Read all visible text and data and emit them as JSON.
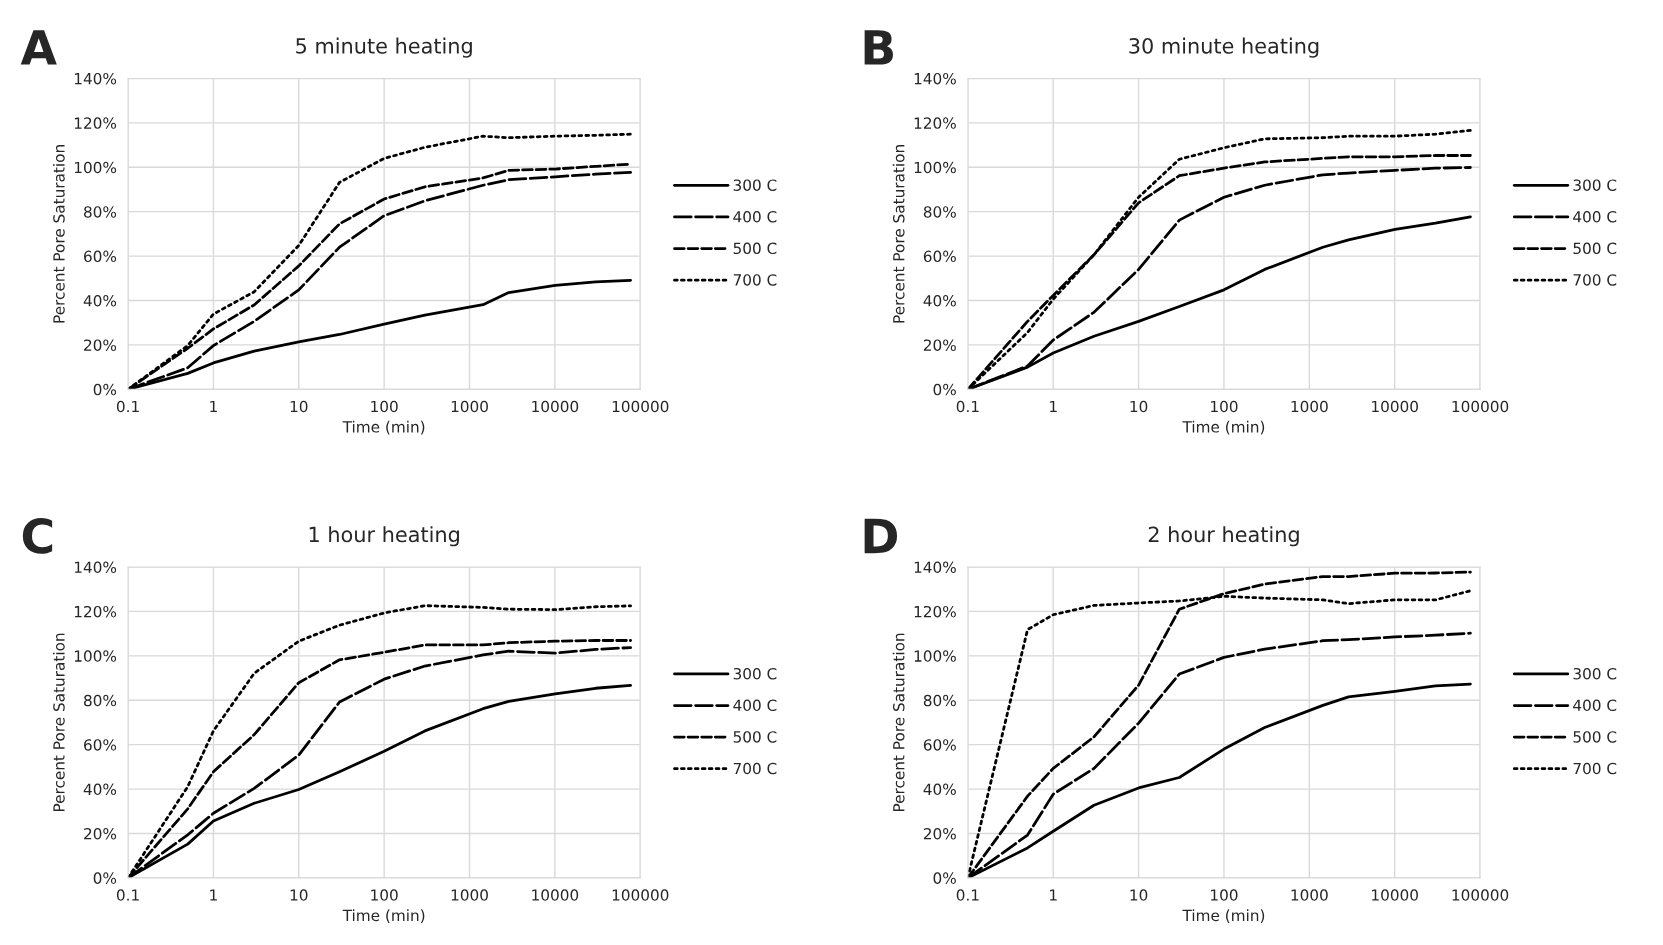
{
  "chart_data": [
    {
      "type": "line",
      "title": "5 minute heating",
      "xlabel": "Time (min)",
      "ylabel": "Percent Pore Saturation",
      "annotations": [
        "A"
      ],
      "log": "x",
      "grid": true,
      "legend": "right",
      "x": [
        0.1,
        0.5,
        1,
        3,
        10,
        30,
        100,
        300,
        1440,
        2880,
        10080,
        30000,
        77000
      ],
      "xlim": [
        0.1,
        100000
      ],
      "xticks": [
        0.1,
        1,
        10,
        100,
        1000,
        10000,
        100000
      ],
      "ylim": [
        0,
        140
      ],
      "yticks": [
        {
          "value": 0,
          "label": "0%"
        },
        {
          "value": 20,
          "label": "20%"
        },
        {
          "value": 40,
          "label": "40%"
        },
        {
          "value": 60,
          "label": "60%"
        },
        {
          "value": 80,
          "label": "80%"
        },
        {
          "value": 100,
          "label": "100%"
        },
        {
          "value": 120,
          "label": "120%"
        },
        {
          "value": 140,
          "label": "140%"
        }
      ],
      "series": [
        {
          "name": "300 C",
          "color": "#000000",
          "line_style": "solid",
          "values": [
            0,
            7.2,
            11.9,
            17.2,
            21.4,
            24.7,
            29.4,
            33.4,
            38.1,
            43.6,
            46.8,
            48.4,
            49.1
          ]
        },
        {
          "name": "400 C",
          "color": "#000000",
          "line_style": "dashed",
          "values": [
            0,
            9.7,
            19.7,
            30.6,
            44.8,
            64,
            78.2,
            84.9,
            91.9,
            94.4,
            95.7,
            96.9,
            97.7
          ]
        },
        {
          "name": "500 C",
          "color": "#000000",
          "line_style": "dashed",
          "values": [
            0,
            18.5,
            27.2,
            38,
            55.6,
            74.5,
            85.7,
            91.2,
            95.2,
            98.6,
            99.2,
            100.4,
            101.4
          ]
        },
        {
          "name": "700 C",
          "color": "#000000",
          "line_style": "dotted",
          "values": [
            0,
            19.7,
            33.9,
            43.9,
            64.8,
            93.2,
            104,
            109,
            114,
            113.3,
            114,
            114.4,
            114.9
          ]
        }
      ]
    },
    {
      "type": "line",
      "title": "30 minute heating",
      "xlabel": "Time (min)",
      "ylabel": "Percent Pore Saturation",
      "annotations": [
        "B"
      ],
      "log": "x",
      "grid": true,
      "legend": "right",
      "x": [
        0.1,
        0.5,
        1,
        3,
        10,
        30,
        100,
        300,
        1440,
        2880,
        10080,
        30000,
        77000
      ],
      "xlim": [
        0.1,
        100000
      ],
      "xticks": [
        0.1,
        1,
        10,
        100,
        1000,
        10000,
        100000
      ],
      "ylim": [
        0,
        140
      ],
      "yticks": [
        {
          "value": 0,
          "label": "0%"
        },
        {
          "value": 20,
          "label": "20%"
        },
        {
          "value": 40,
          "label": "40%"
        },
        {
          "value": 60,
          "label": "60%"
        },
        {
          "value": 80,
          "label": "80%"
        },
        {
          "value": 100,
          "label": "100%"
        },
        {
          "value": 120,
          "label": "120%"
        },
        {
          "value": 140,
          "label": "140%"
        }
      ],
      "series": [
        {
          "name": "300 C",
          "color": "#000000",
          "line_style": "solid",
          "values": [
            0,
            10,
            16.4,
            23.9,
            30.6,
            37.3,
            44.8,
            54,
            64,
            67.3,
            72,
            74.8,
            77.7
          ]
        },
        {
          "name": "400 C",
          "color": "#000000",
          "line_style": "dashed",
          "values": [
            0,
            10.5,
            22.2,
            34.7,
            54,
            76.2,
            86.5,
            91.9,
            96.6,
            97.4,
            98.6,
            99.6,
            99.9
          ]
        },
        {
          "name": "500 C",
          "color": "#000000",
          "line_style": "dashed",
          "values": [
            0,
            30.6,
            42.3,
            60.6,
            84,
            96.2,
            99.6,
            102.4,
            104,
            104.7,
            104.7,
            105.3,
            105.3
          ]
        },
        {
          "name": "700 C",
          "color": "#000000",
          "line_style": "dotted",
          "values": [
            0,
            25.6,
            40.6,
            60.6,
            86.5,
            103.6,
            108.8,
            112.8,
            113.3,
            114,
            114,
            114.9,
            116.6
          ]
        }
      ]
    },
    {
      "type": "line",
      "title": "1 hour heating",
      "xlabel": "Time (min)",
      "ylabel": "Percent Pore Saturation",
      "annotations": [
        "C"
      ],
      "log": "x",
      "grid": true,
      "legend": "right",
      "x": [
        0.1,
        0.5,
        1,
        3,
        10,
        30,
        100,
        300,
        1440,
        2880,
        10080,
        30000,
        77000
      ],
      "xlim": [
        0.1,
        100000
      ],
      "xticks": [
        0.1,
        1,
        10,
        100,
        1000,
        10000,
        100000
      ],
      "ylim": [
        0,
        140
      ],
      "yticks": [
        {
          "value": 0,
          "label": "0%"
        },
        {
          "value": 20,
          "label": "20%"
        },
        {
          "value": 40,
          "label": "40%"
        },
        {
          "value": 60,
          "label": "60%"
        },
        {
          "value": 80,
          "label": "80%"
        },
        {
          "value": 100,
          "label": "100%"
        },
        {
          "value": 120,
          "label": "120%"
        },
        {
          "value": 140,
          "label": "140%"
        }
      ],
      "series": [
        {
          "name": "300 C",
          "color": "#000000",
          "line_style": "solid",
          "values": [
            0,
            15.2,
            25.6,
            33.6,
            39.8,
            47.8,
            57,
            66.2,
            76.2,
            79.5,
            82.9,
            85.4,
            86.7
          ]
        },
        {
          "name": "400 C",
          "color": "#000000",
          "line_style": "dashed",
          "values": [
            0,
            19.4,
            29.1,
            40.3,
            55.3,
            79.2,
            89.5,
            95.4,
            100.4,
            102.1,
            101.2,
            102.9,
            103.7
          ]
        },
        {
          "name": "500 C",
          "color": "#000000",
          "line_style": "dashed",
          "values": [
            0,
            31.1,
            47.8,
            64.5,
            87.9,
            98.2,
            101.6,
            104.9,
            104.9,
            105.9,
            106.6,
            106.9,
            106.9
          ]
        },
        {
          "name": "700 C",
          "color": "#000000",
          "line_style": "dotted",
          "values": [
            0,
            41.1,
            66.2,
            92.1,
            106.6,
            113.8,
            119.3,
            122.6,
            121.8,
            121,
            120.8,
            122.1,
            122.5
          ]
        }
      ]
    },
    {
      "type": "line",
      "title": "2 hour heating",
      "xlabel": "Time (min)",
      "ylabel": "Percent Pore Saturation",
      "annotations": [
        "D"
      ],
      "log": "x",
      "grid": true,
      "legend": "right",
      "x": [
        0.1,
        0.5,
        1,
        3,
        10,
        30,
        100,
        300,
        1440,
        2880,
        10080,
        30000,
        77000
      ],
      "xlim": [
        0.1,
        100000
      ],
      "xticks": [
        0.1,
        1,
        10,
        100,
        1000,
        10000,
        100000
      ],
      "ylim": [
        0,
        140
      ],
      "yticks": [
        {
          "value": 0,
          "label": "0%"
        },
        {
          "value": 20,
          "label": "20%"
        },
        {
          "value": 40,
          "label": "40%"
        },
        {
          "value": 60,
          "label": "60%"
        },
        {
          "value": 80,
          "label": "80%"
        },
        {
          "value": 100,
          "label": "100%"
        },
        {
          "value": 120,
          "label": "120%"
        },
        {
          "value": 140,
          "label": "140%"
        }
      ],
      "series": [
        {
          "name": "300 C",
          "color": "#000000",
          "line_style": "solid",
          "values": [
            0,
            13.5,
            21,
            32.7,
            40.5,
            45.2,
            58,
            67.7,
            77.7,
            81.5,
            84,
            86.5,
            87.3
          ]
        },
        {
          "name": "400 C",
          "color": "#000000",
          "line_style": "dashed",
          "values": [
            0,
            19.3,
            37.7,
            49.3,
            69.7,
            91.8,
            99.3,
            103,
            106.8,
            107.3,
            108.5,
            109.3,
            110.2
          ]
        },
        {
          "name": "500 C",
          "color": "#000000",
          "line_style": "dashed",
          "values": [
            0,
            36.8,
            49.3,
            63.5,
            86.8,
            121,
            128,
            132.3,
            135.7,
            135.7,
            137.2,
            137.3,
            137.7
          ]
        },
        {
          "name": "700 C",
          "color": "#000000",
          "line_style": "dotted",
          "values": [
            0,
            111.8,
            118.5,
            122.7,
            123.8,
            124.7,
            126.8,
            126,
            125.2,
            123.5,
            125.2,
            125.2,
            129.3
          ]
        }
      ]
    }
  ]
}
